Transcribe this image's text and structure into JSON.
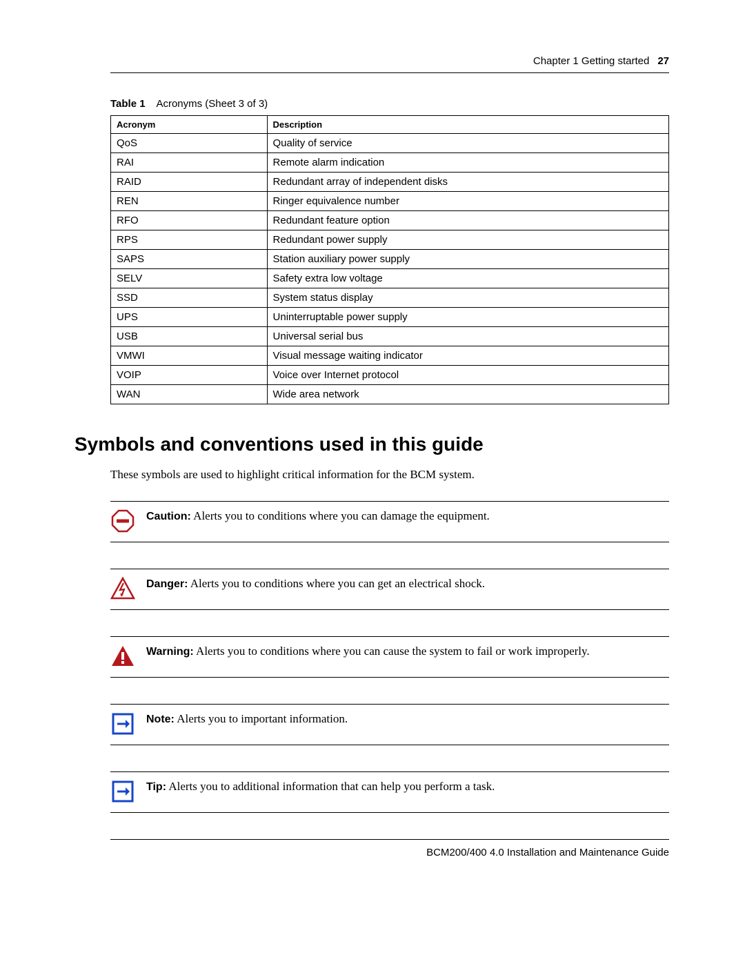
{
  "header": {
    "chapter": "Chapter 1  Getting started",
    "page_number": "27"
  },
  "table": {
    "label": "Table 1",
    "title": "Acronyms (Sheet 3 of 3)",
    "columns": [
      "Acronym",
      "Description"
    ],
    "rows": [
      [
        "QoS",
        "Quality of service"
      ],
      [
        "RAI",
        "Remote alarm indication"
      ],
      [
        "RAID",
        "Redundant array of independent disks"
      ],
      [
        "REN",
        "Ringer equivalence number"
      ],
      [
        "RFO",
        "Redundant feature option"
      ],
      [
        "RPS",
        "Redundant power supply"
      ],
      [
        "SAPS",
        "Station auxiliary power supply"
      ],
      [
        "SELV",
        "Safety extra low voltage"
      ],
      [
        "SSD",
        "System status display"
      ],
      [
        "UPS",
        "Uninterruptable power supply"
      ],
      [
        "USB",
        "Universal serial bus"
      ],
      [
        "VMWI",
        "Visual message waiting indicator"
      ],
      [
        "VOIP",
        "Voice over Internet protocol"
      ],
      [
        "WAN",
        "Wide area network"
      ]
    ]
  },
  "section": {
    "heading": "Symbols and conventions used in this guide",
    "intro": "These symbols are used to highlight critical information for the BCM system."
  },
  "callouts": [
    {
      "icon": "caution",
      "label": "Caution:",
      "text": " Alerts you to conditions where you can damage the equipment."
    },
    {
      "icon": "danger",
      "label": "Danger:",
      "text": " Alerts you to conditions where you can get an electrical shock."
    },
    {
      "icon": "warning",
      "label": "Warning:",
      "text": " Alerts you to conditions where you can cause the system to fail or work improperly."
    },
    {
      "icon": "note",
      "label": "Note:",
      "text": " Alerts you to important information."
    },
    {
      "icon": "tip",
      "label": "Tip:",
      "text": " Alerts you to additional information that can help you perform a task."
    }
  ],
  "footer": {
    "text": "BCM200/400 4.0 Installation and Maintenance Guide"
  },
  "colors": {
    "red": "#b4181e",
    "blue": "#1747c8",
    "black": "#000000",
    "white": "#ffffff"
  }
}
